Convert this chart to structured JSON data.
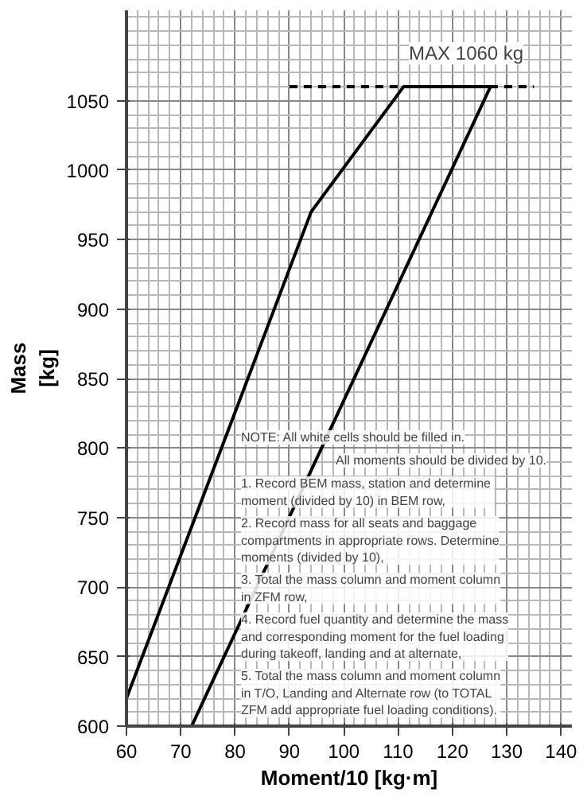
{
  "chart_data": {
    "type": "line",
    "xlabel": "Moment/10 [kg·m]",
    "ylabel": "Mass\n[kg]",
    "xlim": [
      60,
      142
    ],
    "xticks": [
      60,
      70,
      80,
      90,
      100,
      110,
      120,
      130,
      140
    ],
    "ylim": [
      600,
      1115
    ],
    "yticks": [
      600,
      650,
      700,
      750,
      800,
      850,
      900,
      950,
      1000,
      1050
    ],
    "grid": true,
    "marker": "none",
    "series": [
      {
        "color": "#000000",
        "x": [
          60,
          94,
          111,
          127,
          72
        ],
        "values": [
          620,
          970,
          1060,
          1060,
          600
        ],
        "line_style": "solid"
      },
      {
        "color": "#000000",
        "x": [
          90,
          135
        ],
        "values": [
          1060,
          1060
        ],
        "line_style": "dashed"
      }
    ],
    "annotations": [
      {
        "text": "MAX 1060 kg",
        "x": 112,
        "y": 1060
      },
      "NOTE: All white cells should be filled in.",
      "All moments should be divided by 10.",
      "1. Record BEM mass, station and  determine\nmoment (divided by 10) in BEM row,",
      "2. Record mass for all seats and baggage\ncompartments in appropriate rows. Determine\nmoments (divided by 10),",
      "3. Total the mass column and moment column\nin ZFM row,",
      "4. Record fuel quantity and determine the mass\nand corresponding moment for the fuel loading\nduring takeoff, landing and at alternate,",
      "5. Total the mass column and moment column\nin T/O, Landing and Alternate row (to TOTAL\nZFM add appropriate fuel loading conditions)."
    ]
  }
}
